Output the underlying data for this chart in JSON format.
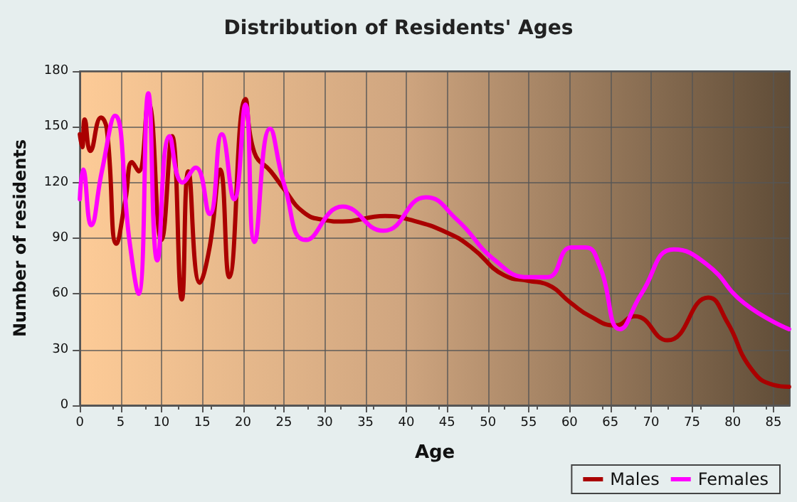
{
  "chart_data": {
    "type": "line",
    "title": "Distribution of Residents' Ages",
    "xlabel": "Age",
    "ylabel": "Number of residents",
    "xlim": [
      0,
      87
    ],
    "xticks": [
      0,
      5,
      10,
      15,
      20,
      25,
      30,
      35,
      40,
      45,
      50,
      55,
      60,
      65,
      70,
      75,
      80,
      85
    ],
    "ylim": [
      0,
      180
    ],
    "yticks": [
      0,
      30,
      60,
      90,
      120,
      150,
      180
    ],
    "grid": true,
    "legend": "bottom right",
    "marker": "none",
    "line_style": "solid",
    "series": [
      {
        "name": "Males",
        "color": "#aa0000",
        "x": [
          0,
          0.3,
          0.6,
          1.3,
          2.6,
          3.3,
          4.5,
          5.6,
          6.4,
          7.2,
          8.4,
          10,
          11.3,
          12.5,
          13.3,
          14.7,
          15.9,
          17.2,
          18.3,
          20.3,
          21.4,
          23.4,
          25.1,
          27.4,
          29.7,
          32.2,
          37.4,
          40.4,
          45,
          48,
          52,
          55,
          57.3,
          60.2,
          62.5,
          65.6,
          68,
          72,
          77,
          79.3,
          82.2,
          85,
          86.9
        ],
        "values": [
          146,
          139,
          154,
          137,
          155,
          149,
          87,
          111,
          131,
          126,
          163,
          89,
          145,
          57,
          126,
          66,
          85,
          127,
          69,
          165,
          136,
          126,
          116,
          104,
          100,
          99,
          102,
          100,
          93,
          85,
          70,
          67,
          65,
          55,
          48,
          43,
          48,
          35,
          58,
          45,
          20,
          11,
          10
        ]
      },
      {
        "name": "Females",
        "color": "#ff00ff",
        "x": [
          0,
          0.4,
          1.4,
          2.7,
          4.3,
          6.1,
          7.2,
          8.4,
          9.5,
          11,
          12.6,
          14.2,
          15.9,
          17.4,
          18.9,
          20.3,
          21.4,
          23.3,
          25.1,
          27.7,
          32.2,
          37.2,
          42.4,
          46.2,
          50.9,
          55,
          57.3,
          60.2,
          62,
          63.7,
          66.2,
          68.8,
          72.8,
          76.8,
          81.4,
          86.9
        ],
        "values": [
          111,
          127,
          97,
          126,
          156,
          88,
          60,
          168,
          78,
          145,
          120,
          128,
          103,
          146,
          111,
          162,
          88,
          149,
          118,
          89,
          107,
          94,
          112,
          100,
          78,
          69,
          69,
          85,
          85,
          75,
          41,
          60,
          84,
          76,
          55,
          41
        ]
      }
    ]
  }
}
